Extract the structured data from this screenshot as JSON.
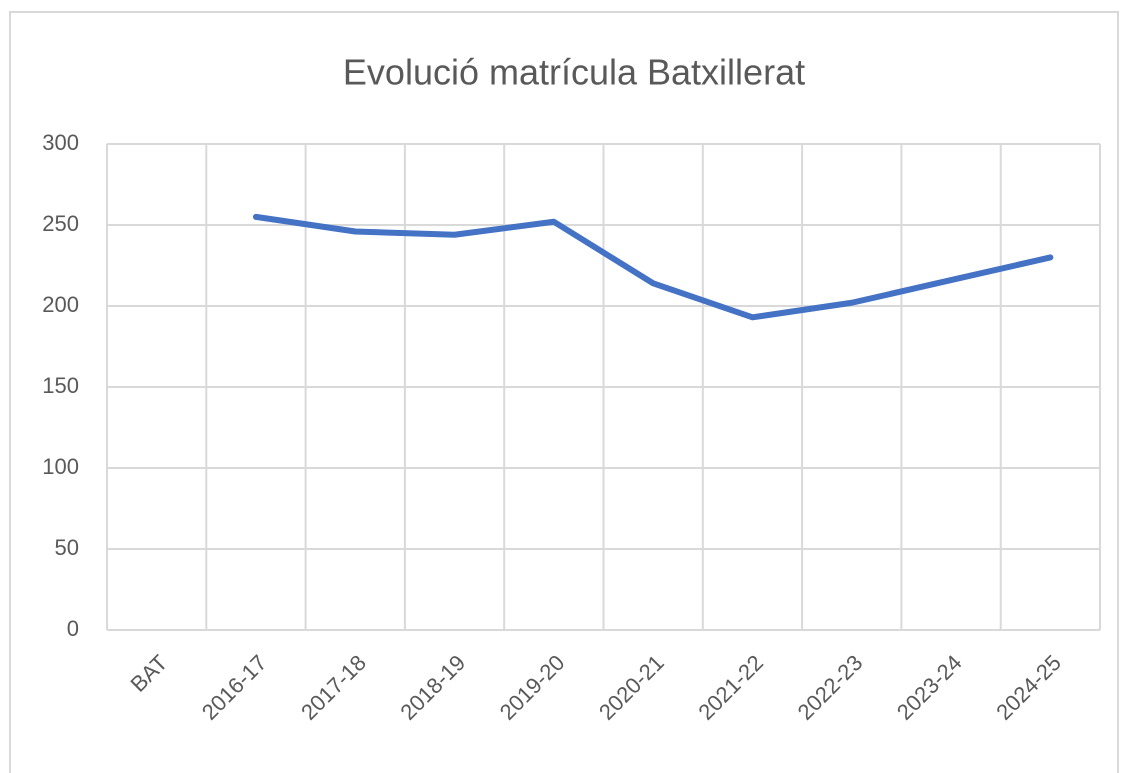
{
  "chart_data": {
    "type": "line",
    "title": "Evolució matrícula Batxillerat",
    "categories": [
      "BAT",
      "2016-17",
      "2017-18",
      "2018-19",
      "2019-20",
      "2020-21",
      "2021-22",
      "2022-23",
      "2023-24",
      "2024-25"
    ],
    "values": [
      null,
      255,
      246,
      244,
      252,
      214,
      193,
      202,
      216,
      230
    ],
    "color": "#4472c4",
    "ylim": [
      0,
      300
    ],
    "yticks": [
      0,
      50,
      100,
      150,
      200,
      250,
      300
    ],
    "grid": true
  }
}
